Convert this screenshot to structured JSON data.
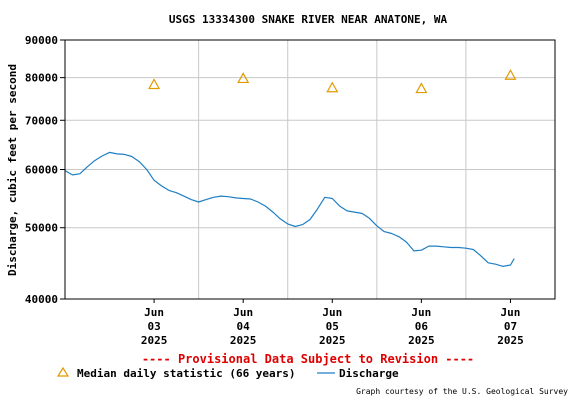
{
  "chart_data": {
    "type": "line",
    "title": "USGS 13334300 SNAKE RIVER NEAR ANATONE, WA",
    "ylabel": "Discharge, cubic feet per second",
    "yscale": "log",
    "ylim": [
      40000,
      90000
    ],
    "yticks": [
      {
        "value": 40000,
        "label": "40000"
      },
      {
        "value": 50000,
        "label": "50000"
      },
      {
        "value": 60000,
        "label": "60000"
      },
      {
        "value": 70000,
        "label": "70000"
      },
      {
        "value": 80000,
        "label": "80000"
      },
      {
        "value": 90000,
        "label": "90000"
      }
    ],
    "xlim": [
      "2025-06-02",
      "2025-06-07 12:00"
    ],
    "xticks": [
      {
        "date": "2025-06-03",
        "lines": [
          "Jun",
          "03",
          "2025"
        ]
      },
      {
        "date": "2025-06-04",
        "lines": [
          "Jun",
          "04",
          "2025"
        ]
      },
      {
        "date": "2025-06-05",
        "lines": [
          "Jun",
          "05",
          "2025"
        ]
      },
      {
        "date": "2025-06-06",
        "lines": [
          "Jun",
          "06",
          "2025"
        ]
      },
      {
        "date": "2025-06-07",
        "lines": [
          "Jun",
          "07",
          "2025"
        ]
      }
    ],
    "grid": true,
    "series": [
      {
        "name": "Discharge",
        "color": "#1f7fc4",
        "points": [
          [
            "2025-06-02 00:00",
            59800
          ],
          [
            "2025-06-02 02:00",
            59000
          ],
          [
            "2025-06-02 04:00",
            59200
          ],
          [
            "2025-06-02 06:00",
            60500
          ],
          [
            "2025-06-02 08:00",
            61700
          ],
          [
            "2025-06-02 10:00",
            62600
          ],
          [
            "2025-06-02 12:00",
            63300
          ],
          [
            "2025-06-02 14:00",
            63000
          ],
          [
            "2025-06-02 16:00",
            62900
          ],
          [
            "2025-06-02 18:00",
            62500
          ],
          [
            "2025-06-02 20:00",
            61500
          ],
          [
            "2025-06-02 22:00",
            60000
          ],
          [
            "2025-06-03 00:00",
            58000
          ],
          [
            "2025-06-03 02:00",
            57000
          ],
          [
            "2025-06-03 04:00",
            56200
          ],
          [
            "2025-06-03 06:00",
            55800
          ],
          [
            "2025-06-03 08:00",
            55200
          ],
          [
            "2025-06-03 10:00",
            54600
          ],
          [
            "2025-06-03 12:00",
            54200
          ],
          [
            "2025-06-03 14:00",
            54600
          ],
          [
            "2025-06-03 16:00",
            55000
          ],
          [
            "2025-06-03 18:00",
            55200
          ],
          [
            "2025-06-03 20:00",
            55100
          ],
          [
            "2025-06-03 22:00",
            54900
          ],
          [
            "2025-06-04 00:00",
            54800
          ],
          [
            "2025-06-04 02:00",
            54700
          ],
          [
            "2025-06-04 04:00",
            54200
          ],
          [
            "2025-06-04 06:00",
            53500
          ],
          [
            "2025-06-04 08:00",
            52500
          ],
          [
            "2025-06-04 10:00",
            51400
          ],
          [
            "2025-06-04 12:00",
            50600
          ],
          [
            "2025-06-04 14:00",
            50200
          ],
          [
            "2025-06-04 16:00",
            50500
          ],
          [
            "2025-06-04 18:00",
            51300
          ],
          [
            "2025-06-04 20:00",
            53000
          ],
          [
            "2025-06-04 22:00",
            55000
          ],
          [
            "2025-06-05 00:00",
            54800
          ],
          [
            "2025-06-05 02:00",
            53500
          ],
          [
            "2025-06-05 04:00",
            52700
          ],
          [
            "2025-06-05 06:00",
            52500
          ],
          [
            "2025-06-05 08:00",
            52300
          ],
          [
            "2025-06-05 10:00",
            51500
          ],
          [
            "2025-06-05 12:00",
            50300
          ],
          [
            "2025-06-05 14:00",
            49400
          ],
          [
            "2025-06-05 16:00",
            49100
          ],
          [
            "2025-06-05 18:00",
            48600
          ],
          [
            "2025-06-05 20:00",
            47800
          ],
          [
            "2025-06-05 22:00",
            46500
          ],
          [
            "2025-06-06 00:00",
            46600
          ],
          [
            "2025-06-06 02:00",
            47200
          ],
          [
            "2025-06-06 04:00",
            47200
          ],
          [
            "2025-06-06 06:00",
            47100
          ],
          [
            "2025-06-06 08:00",
            47000
          ],
          [
            "2025-06-06 10:00",
            47000
          ],
          [
            "2025-06-06 12:00",
            46900
          ],
          [
            "2025-06-06 14:00",
            46700
          ],
          [
            "2025-06-06 16:00",
            45800
          ],
          [
            "2025-06-06 18:00",
            44800
          ],
          [
            "2025-06-06 20:00",
            44600
          ],
          [
            "2025-06-06 22:00",
            44300
          ],
          [
            "2025-06-07 00:00",
            44500
          ],
          [
            "2025-06-07 01:00",
            45400
          ]
        ]
      },
      {
        "name": "Median daily statistic (66 years)",
        "color": "#e09b00",
        "marker": "triangle",
        "points": [
          [
            "2025-06-03",
            78300
          ],
          [
            "2025-06-04",
            79800
          ],
          [
            "2025-06-05",
            77500
          ],
          [
            "2025-06-06",
            77300
          ],
          [
            "2025-06-07",
            80600
          ]
        ]
      }
    ]
  },
  "notice": "---- Provisional Data Subject to Revision ----",
  "legend": {
    "median_label": "Median daily statistic (66 years)",
    "discharge_label": "Discharge"
  },
  "credit": "Graph courtesy of the U.S. Geological Survey"
}
